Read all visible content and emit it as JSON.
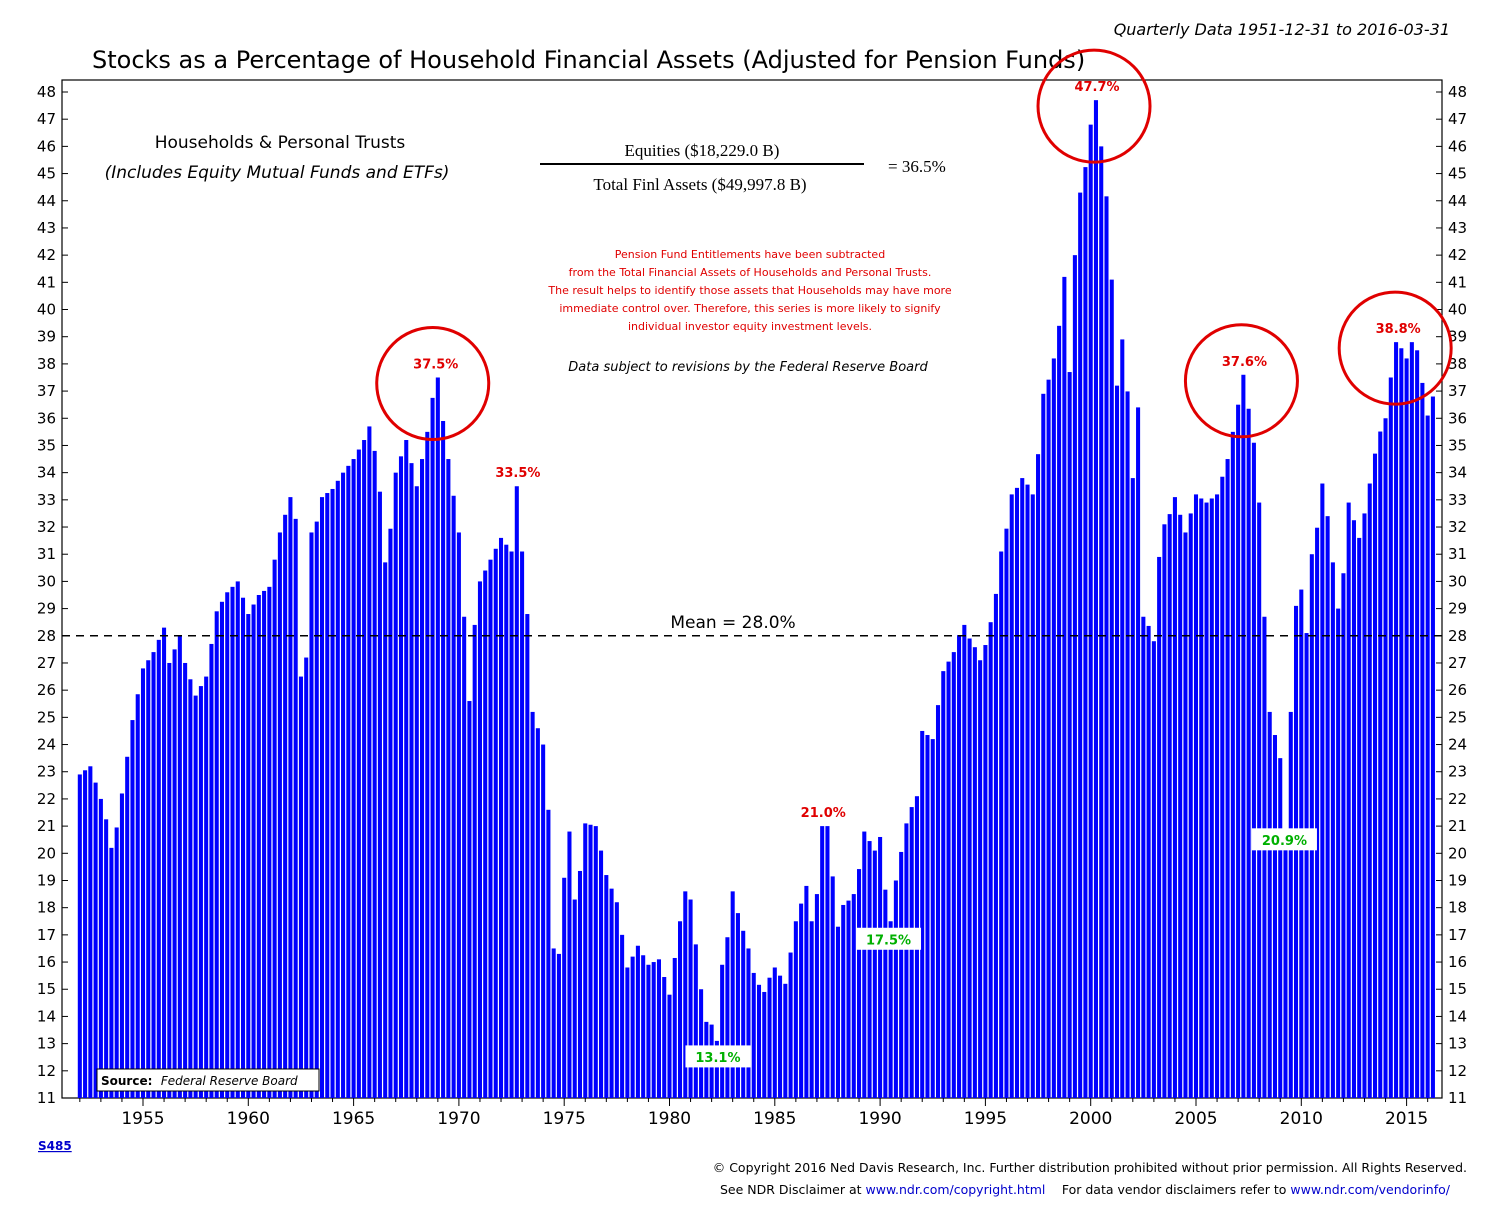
{
  "header": {
    "period": "Quarterly Data 1951-12-31 to 2016-03-31",
    "title": "Stocks as a Percentage of Household Financial Assets (Adjusted for Pension Funds)"
  },
  "subtitle": {
    "line1": "Households & Personal Trusts",
    "line2": "(Includes Equity Mutual Funds and ETFs)"
  },
  "formula": {
    "numerator": "Equities ($18,229.0 B)",
    "denominator": "Total Finl Assets ($49,997.8 B)",
    "result": "=  36.5%"
  },
  "notes": {
    "pension": [
      "Pension Fund Entitlements have been subtracted",
      "from the Total Financial Assets of Households and Personal Trusts.",
      "The result helps to identify those assets that Households may have more",
      "immediate control over. Therefore, this series is more likely to signify",
      "individual investor equity investment levels."
    ],
    "revisions": "Data subject to revisions by the Federal Reserve Board"
  },
  "source": {
    "label": "Source:",
    "text": "Federal Reserve Board"
  },
  "footer": {
    "code": "S485",
    "copyright": "© Copyright 2016 Ned Davis Research, Inc. Further distribution prohibited without prior permission. All Rights Reserved.",
    "disclaimer_prefix": "See NDR Disclaimer at ",
    "disclaimer_link": "www.ndr.com/copyright.html",
    "vendor_prefix": "For data vendor disclaimers refer to ",
    "vendor_link": "www.ndr.com/vendorinfo/"
  },
  "colors": {
    "bar": "#0000ff",
    "annotation_high": "#e00000",
    "annotation_low": "#00b000",
    "circle": "#e00000"
  },
  "chart_data": {
    "type": "bar",
    "frequency": "quarterly",
    "x_start": "1951-12-31",
    "x_end": "2016-03-31",
    "ylim": [
      11,
      48
    ],
    "yticks": [
      11,
      12,
      13,
      14,
      15,
      16,
      17,
      18,
      19,
      20,
      21,
      22,
      23,
      24,
      25,
      26,
      27,
      28,
      29,
      30,
      31,
      32,
      33,
      34,
      35,
      36,
      37,
      38,
      39,
      40,
      41,
      42,
      43,
      44,
      45,
      46,
      47,
      48
    ],
    "xticks": [
      1955,
      1960,
      1965,
      1970,
      1975,
      1980,
      1985,
      1990,
      1995,
      2000,
      2005,
      2010,
      2015
    ],
    "mean": {
      "value": 28.0,
      "label": "Mean = 28.0%"
    },
    "keypoints": [
      [
        1951.99,
        22.9
      ],
      [
        1952.5,
        23.2
      ],
      [
        1953.0,
        22.0
      ],
      [
        1953.6,
        20.2
      ],
      [
        1954.0,
        22.2
      ],
      [
        1954.5,
        24.9
      ],
      [
        1955.0,
        26.8
      ],
      [
        1955.5,
        27.4
      ],
      [
        1956.0,
        28.3
      ],
      [
        1956.3,
        27.0
      ],
      [
        1956.7,
        28.0
      ],
      [
        1957.0,
        27.0
      ],
      [
        1957.5,
        25.8
      ],
      [
        1958.0,
        26.5
      ],
      [
        1958.5,
        28.9
      ],
      [
        1959.0,
        29.6
      ],
      [
        1959.5,
        30.0
      ],
      [
        1960.0,
        28.8
      ],
      [
        1960.5,
        29.5
      ],
      [
        1961.0,
        29.8
      ],
      [
        1961.5,
        31.8
      ],
      [
        1962.0,
        33.1
      ],
      [
        1962.3,
        32.3
      ],
      [
        1962.5,
        26.5
      ],
      [
        1962.8,
        27.2
      ],
      [
        1963.0,
        31.8
      ],
      [
        1963.3,
        32.2
      ],
      [
        1963.5,
        33.1
      ],
      [
        1964.0,
        33.4
      ],
      [
        1964.5,
        34.0
      ],
      [
        1965.0,
        34.5
      ],
      [
        1965.5,
        35.2
      ],
      [
        1965.8,
        35.7
      ],
      [
        1966.0,
        34.8
      ],
      [
        1966.3,
        33.3
      ],
      [
        1966.6,
        30.7
      ],
      [
        1967.0,
        34.0
      ],
      [
        1967.5,
        35.2
      ],
      [
        1968.0,
        33.5
      ],
      [
        1968.5,
        35.5
      ],
      [
        1968.9,
        37.5
      ],
      [
        1969.2,
        35.9
      ],
      [
        1969.5,
        34.5
      ],
      [
        1970.0,
        31.8
      ],
      [
        1970.5,
        25.6
      ],
      [
        1970.8,
        28.4
      ],
      [
        1971.0,
        30.0
      ],
      [
        1971.5,
        30.8
      ],
      [
        1972.0,
        31.6
      ],
      [
        1972.5,
        31.1
      ],
      [
        1972.8,
        33.5
      ],
      [
        1973.0,
        31.1
      ],
      [
        1973.3,
        28.8
      ],
      [
        1973.6,
        25.2
      ],
      [
        1973.9,
        24.0
      ],
      [
        1974.2,
        21.6
      ],
      [
        1974.5,
        16.5
      ],
      [
        1974.8,
        16.3
      ],
      [
        1975.0,
        19.1
      ],
      [
        1975.3,
        20.8
      ],
      [
        1975.6,
        18.3
      ],
      [
        1976.0,
        21.1
      ],
      [
        1976.5,
        21.0
      ],
      [
        1977.0,
        19.2
      ],
      [
        1977.5,
        18.2
      ],
      [
        1978.0,
        15.8
      ],
      [
        1978.5,
        16.6
      ],
      [
        1979.0,
        15.9
      ],
      [
        1979.5,
        16.1
      ],
      [
        1980.0,
        14.8
      ],
      [
        1980.5,
        17.5
      ],
      [
        1980.8,
        18.6
      ],
      [
        1981.0,
        18.3
      ],
      [
        1981.5,
        15.0
      ],
      [
        1981.8,
        13.8
      ],
      [
        1982.0,
        13.7
      ],
      [
        1982.3,
        13.1
      ],
      [
        1982.6,
        15.9
      ],
      [
        1983.0,
        18.6
      ],
      [
        1983.3,
        17.8
      ],
      [
        1983.7,
        16.5
      ],
      [
        1984.0,
        15.6
      ],
      [
        1984.4,
        14.9
      ],
      [
        1985.0,
        15.8
      ],
      [
        1985.5,
        15.2
      ],
      [
        1986.0,
        17.5
      ],
      [
        1986.5,
        18.8
      ],
      [
        1986.8,
        17.5
      ],
      [
        1987.0,
        18.5
      ],
      [
        1987.3,
        21.0
      ],
      [
        1987.6,
        21.0
      ],
      [
        1987.9,
        17.3
      ],
      [
        1988.3,
        18.1
      ],
      [
        1988.8,
        18.5
      ],
      [
        1989.3,
        20.8
      ],
      [
        1989.7,
        20.1
      ],
      [
        1990.0,
        20.6
      ],
      [
        1990.4,
        17.5
      ],
      [
        1990.8,
        19.0
      ],
      [
        1991.2,
        21.1
      ],
      [
        1991.7,
        22.1
      ],
      [
        1992.0,
        24.5
      ],
      [
        1992.5,
        24.2
      ],
      [
        1993.0,
        26.7
      ],
      [
        1993.5,
        27.4
      ],
      [
        1993.9,
        28.4
      ],
      [
        1994.3,
        27.9
      ],
      [
        1994.8,
        27.1
      ],
      [
        1995.3,
        28.5
      ],
      [
        1995.8,
        31.1
      ],
      [
        1996.3,
        33.2
      ],
      [
        1996.8,
        33.8
      ],
      [
        1997.3,
        33.2
      ],
      [
        1997.8,
        36.9
      ],
      [
        1998.3,
        38.2
      ],
      [
        1998.8,
        41.2
      ],
      [
        1999.0,
        37.7
      ],
      [
        1999.3,
        42.0
      ],
      [
        1999.6,
        44.3
      ],
      [
        2000.0,
        46.8
      ],
      [
        2000.3,
        47.7
      ],
      [
        2000.6,
        46.0
      ],
      [
        2001.0,
        41.1
      ],
      [
        2001.3,
        37.2
      ],
      [
        2001.6,
        38.9
      ],
      [
        2002.0,
        33.8
      ],
      [
        2002.3,
        36.4
      ],
      [
        2002.6,
        28.7
      ],
      [
        2003.0,
        27.8
      ],
      [
        2003.3,
        30.9
      ],
      [
        2003.6,
        32.1
      ],
      [
        2004.0,
        33.1
      ],
      [
        2004.5,
        31.8
      ],
      [
        2005.0,
        33.2
      ],
      [
        2005.5,
        32.9
      ],
      [
        2006.0,
        33.2
      ],
      [
        2006.5,
        34.5
      ],
      [
        2007.0,
        36.5
      ],
      [
        2007.3,
        37.6
      ],
      [
        2007.7,
        35.1
      ],
      [
        2008.0,
        32.9
      ],
      [
        2008.3,
        28.7
      ],
      [
        2008.6,
        25.2
      ],
      [
        2008.9,
        23.5
      ],
      [
        2009.2,
        20.9
      ],
      [
        2009.5,
        25.2
      ],
      [
        2009.8,
        29.1
      ],
      [
        2010.0,
        29.7
      ],
      [
        2010.3,
        28.1
      ],
      [
        2010.6,
        31.0
      ],
      [
        2011.0,
        33.6
      ],
      [
        2011.3,
        32.4
      ],
      [
        2011.7,
        29.0
      ],
      [
        2012.0,
        30.3
      ],
      [
        2012.3,
        32.9
      ],
      [
        2012.7,
        31.6
      ],
      [
        2013.0,
        32.5
      ],
      [
        2013.5,
        34.7
      ],
      [
        2013.9,
        36.0
      ],
      [
        2014.3,
        37.5
      ],
      [
        2014.6,
        38.8
      ],
      [
        2015.0,
        38.2
      ],
      [
        2015.3,
        38.8
      ],
      [
        2015.6,
        38.5
      ],
      [
        2015.9,
        36.1
      ],
      [
        2016.2,
        36.8
      ]
    ],
    "annotations": [
      {
        "text": "37.5%",
        "x": 1968.9,
        "y": 37.5,
        "color": "red",
        "circled": true
      },
      {
        "text": "33.5%",
        "x": 1972.8,
        "y": 33.5,
        "color": "red",
        "circled": false
      },
      {
        "text": "47.7%",
        "x": 2000.3,
        "y": 47.7,
        "color": "red",
        "circled": true
      },
      {
        "text": "37.6%",
        "x": 2007.3,
        "y": 37.6,
        "color": "red",
        "circled": true
      },
      {
        "text": "38.8%",
        "x": 2014.6,
        "y": 38.8,
        "color": "red",
        "circled": true
      },
      {
        "text": "21.0%",
        "x": 1987.3,
        "y": 21.0,
        "color": "red",
        "circled": false
      },
      {
        "text": "13.1%",
        "x": 1982.3,
        "y": 13.1,
        "color": "green",
        "circled": false
      },
      {
        "text": "17.5%",
        "x": 1990.4,
        "y": 17.5,
        "color": "green",
        "circled": false
      },
      {
        "text": "20.9%",
        "x": 2009.2,
        "y": 20.9,
        "color": "green",
        "circled": false
      }
    ]
  }
}
